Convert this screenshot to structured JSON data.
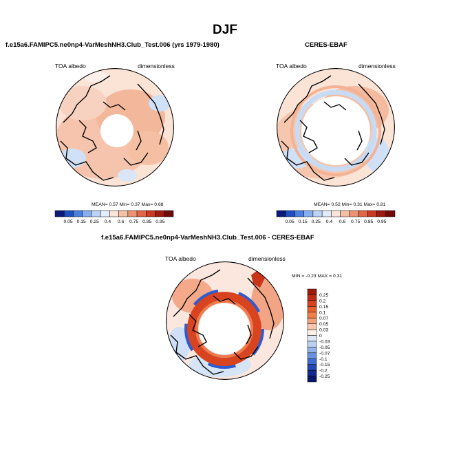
{
  "main_title": "DJF",
  "panels": [
    {
      "title": "f.e15a6.FAMIPC5.ne0np4-VarMeshNH3.Club_Test.006 (yrs 1979-1980)",
      "left_label": "TOA albedo",
      "right_label": "dimensionless",
      "stats": "MEAN=   0.57  Min=   0.37  Max=   0.68",
      "colorbar": {
        "ticks": [
          "0.05",
          "0.15",
          "0.25",
          "0.4",
          "0.6",
          "0.75",
          "0.85",
          "0.95"
        ],
        "colors": [
          "#0a1a7a",
          "#1f4fc0",
          "#4a7fe0",
          "#86aef0",
          "#bcd3f7",
          "#e3ecfb",
          "#fbe5da",
          "#f6c0a6",
          "#ee9274",
          "#e06646",
          "#c83a26",
          "#9e1a10",
          "#700a0a"
        ]
      }
    },
    {
      "title": "CERES-EBAF",
      "left_label": "TOA albedo",
      "right_label": "dimensionless",
      "stats": "MEAN=   0.52  Min=   0.31  Max=   0.81",
      "colorbar": {
        "ticks": [
          "0.05",
          "0.15",
          "0.25",
          "0.4",
          "0.6",
          "0.75",
          "0.85",
          "0.95"
        ],
        "colors": [
          "#0a1a7a",
          "#1f4fc0",
          "#4a7fe0",
          "#86aef0",
          "#bcd3f7",
          "#e3ecfb",
          "#fbe5da",
          "#f6c0a6",
          "#ee9274",
          "#e06646",
          "#c83a26",
          "#9e1a10",
          "#700a0a"
        ]
      }
    },
    {
      "title": "f.e15a6.FAMIPC5.ne0np4-VarMeshNH3.Club_Test.006 - CERES-EBAF",
      "left_label": "TOA albedo",
      "right_label": "dimensionless",
      "stats": "MIN =  -0.23 MAX =   0.31",
      "colorbar": {
        "ticks": [
          "0.25",
          "0.2",
          "0.15",
          "0.1",
          "0.07",
          "0.05",
          "0.03",
          "0",
          "-0.03",
          "-0.05",
          "-0.07",
          "-0.1",
          "-0.15",
          "-0.2",
          "-0.25"
        ],
        "colors": [
          "#9b1b0e",
          "#bf2a16",
          "#d8431f",
          "#e8602d",
          "#f08048",
          "#f4a27a",
          "#f8c7ae",
          "#fdf0e8",
          "#dfe8f7",
          "#bcd0f0",
          "#93b3ea",
          "#6a92df",
          "#3f6bd1",
          "#2446b2",
          "#132c8e",
          "#0a1a6a"
        ]
      }
    }
  ]
}
